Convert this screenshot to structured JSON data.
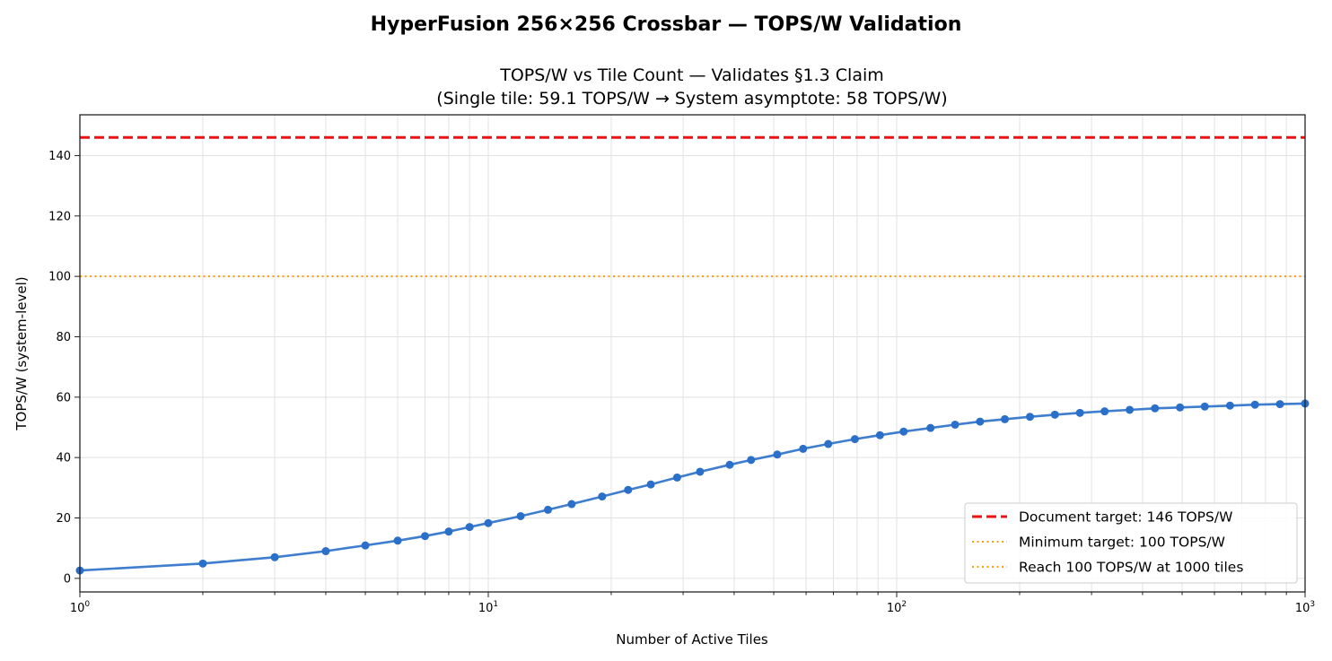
{
  "suptitle": "HyperFusion 256×256 Crossbar — TOPS/W Validation",
  "chart_data": {
    "type": "line",
    "title_line1": "TOPS/W vs Tile Count — Validates §1.3 Claim",
    "title_line2": "(Single tile: 59.1 TOPS/W → System asymptote: 58 TOPS/W)",
    "xlabel": "Number of Active Tiles",
    "ylabel": "TOPS/W (system-level)",
    "xscale": "log",
    "xlim": [
      1,
      1000
    ],
    "ylim": [
      -4.5,
      153.5
    ],
    "yticks": [
      0,
      20,
      40,
      60,
      80,
      100,
      120,
      140
    ],
    "xticks": [
      {
        "value": 1,
        "base": "10",
        "exp": "0"
      },
      {
        "value": 10,
        "base": "10",
        "exp": "1"
      },
      {
        "value": 100,
        "base": "10",
        "exp": "2"
      },
      {
        "value": 1000,
        "base": "10",
        "exp": "3"
      }
    ],
    "grid": true,
    "legend_position": "lower-right",
    "series": [
      {
        "color": "#2a6fc9",
        "marker": "circle",
        "x": [
          1,
          2,
          3,
          4,
          5,
          6,
          7,
          8,
          9,
          10,
          12,
          14,
          16,
          19,
          22,
          25,
          29,
          33,
          39,
          44,
          51,
          59,
          68,
          79,
          91,
          104,
          121,
          139,
          160,
          184,
          212,
          244,
          281,
          323,
          372,
          429,
          494,
          568,
          655,
          754,
          868,
          1000
        ],
        "y": [
          2.6,
          4.9,
          7.0,
          9.0,
          10.9,
          12.5,
          14.0,
          15.5,
          17.0,
          18.3,
          20.6,
          22.7,
          24.6,
          27.1,
          29.3,
          31.1,
          33.4,
          35.3,
          37.6,
          39.2,
          41.0,
          42.9,
          44.5,
          46.1,
          47.4,
          48.6,
          49.8,
          50.9,
          51.9,
          52.7,
          53.5,
          54.2,
          54.8,
          55.3,
          55.8,
          56.3,
          56.6,
          56.9,
          57.2,
          57.5,
          57.7,
          57.9
        ]
      }
    ],
    "reference_lines": [
      {
        "name": "Document target: 146 TOPS/W",
        "y": 146,
        "color": "#ee1111",
        "style": "dashed"
      },
      {
        "name": "Minimum target: 100 TOPS/W",
        "y": 100,
        "color": "#f5a010",
        "style": "dotted"
      }
    ],
    "legend_entries": [
      {
        "label": "Document target: 146 TOPS/W",
        "color": "#ee1111",
        "style": "dashed"
      },
      {
        "label": "Minimum target: 100 TOPS/W",
        "color": "#f5a010",
        "style": "dotted"
      },
      {
        "label": "Reach 100 TOPS/W at 1000 tiles",
        "color": "#f5a010",
        "style": "dotted"
      }
    ]
  }
}
